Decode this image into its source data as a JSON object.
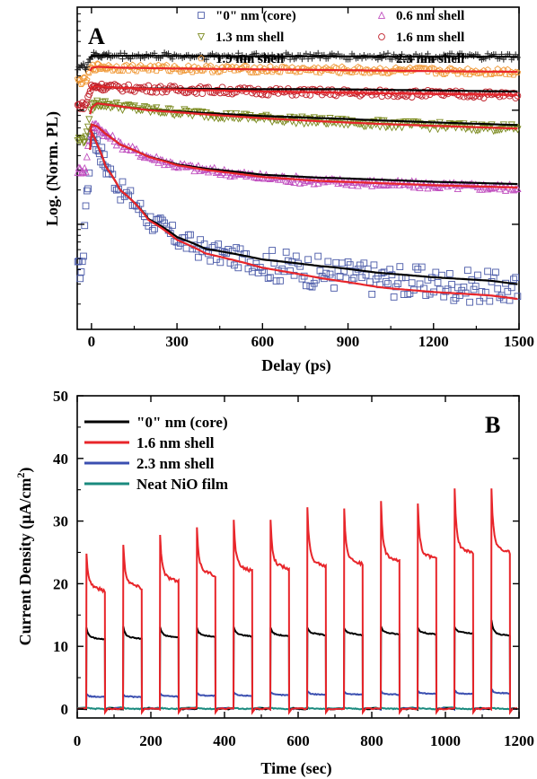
{
  "colors": {
    "core": "#4a5aa8",
    "s06": "#c04fbf",
    "s13": "#7b8a1f",
    "s16": "#c0202a",
    "s19": "#f09a3a",
    "s23": "#222222",
    "fit_black": "#000000",
    "fit_red": "#e8252a",
    "b_core": "#000000",
    "b_16": "#e8252a",
    "b_23": "#3b4fb0",
    "b_nio": "#1a8a7e"
  },
  "panel_a": {
    "letter": "A",
    "ylabel": "Log. (Norm. PL)",
    "xlabel": "Delay (ps)",
    "xticks": [
      "0",
      "300",
      "600",
      "900",
      "1200",
      "1500"
    ]
  },
  "panel_b": {
    "letter": "B",
    "ylabel_main": "Current Density (μA/cm",
    "ylabel_sup": "2",
    "ylabel_end": ")",
    "xlabel": "Time (sec)",
    "xticks": [
      "0",
      "200",
      "400",
      "600",
      "800",
      "1000",
      "1200"
    ],
    "yticks": [
      "0",
      "10",
      "20",
      "30",
      "40",
      "50"
    ]
  },
  "chart_data": [
    {
      "type": "scatter",
      "x_label": "Delay (ps)",
      "y_label": "Log. (Norm. PL)",
      "x_range": [
        -50,
        1500
      ],
      "y_scale": "log",
      "y_tick_labels_shown": false,
      "legend_location": "top-right",
      "legend": [
        {
          "label": "\"0\" nm (core)",
          "marker": "open square",
          "color": "core"
        },
        {
          "label": "0.6 nm shell",
          "marker": "open triangle up",
          "color": "s06"
        },
        {
          "label": "1.3 nm shell",
          "marker": "open triangle down",
          "color": "s13"
        },
        {
          "label": "1.6 nm shell",
          "marker": "open circle",
          "color": "s16"
        },
        {
          "label": "1.9 nm shell",
          "marker": "open pentagon",
          "color": "s19"
        },
        {
          "label": "2.3 nm shell",
          "marker": "plus",
          "color": "s23"
        }
      ],
      "series_note": "Each data series is shown with a black and a red fitted curve; values are relative log levels (1 = peak of core).",
      "series": [
        {
          "name": "\"0\" nm (core)",
          "x": [
            -30,
            -10,
            0,
            20,
            50,
            100,
            200,
            300,
            400,
            600,
            800,
            1000,
            1200,
            1400,
            1500
          ],
          "y": [
            0.04,
            0.25,
            0.65,
            0.5,
            0.32,
            0.2,
            0.11,
            0.075,
            0.058,
            0.045,
            0.038,
            0.033,
            0.03,
            0.028,
            0.026
          ]
        },
        {
          "name": "0.6 nm shell",
          "x": [
            -20,
            0,
            20,
            50,
            100,
            200,
            300,
            400,
            600,
            800,
            1000,
            1200,
            1500
          ],
          "y": [
            0.3,
            0.75,
            0.72,
            0.62,
            0.5,
            0.39,
            0.33,
            0.3,
            0.26,
            0.24,
            0.23,
            0.22,
            0.21
          ]
        },
        {
          "name": "1.3 nm shell",
          "x": [
            -20,
            0,
            20,
            100,
            200,
            400,
            600,
            800,
            1000,
            1200,
            1500
          ],
          "y": [
            0.55,
            1.05,
            1.15,
            1.08,
            1.0,
            0.92,
            0.85,
            0.8,
            0.76,
            0.73,
            0.69
          ]
        },
        {
          "name": "1.6 nm shell",
          "x": [
            -20,
            0,
            20,
            100,
            300,
            600,
            900,
            1200,
            1500
          ],
          "y": [
            1.1,
            1.6,
            1.62,
            1.57,
            1.52,
            1.46,
            1.42,
            1.39,
            1.36
          ]
        },
        {
          "name": "1.9 nm shell",
          "x": [
            -20,
            0,
            20,
            100,
            300,
            600,
            900,
            1200,
            1500
          ],
          "y": [
            1.8,
            2.35,
            2.4,
            2.36,
            2.32,
            2.28,
            2.24,
            2.2,
            2.17
          ]
        },
        {
          "name": "2.3 nm shell",
          "x": [
            -20,
            0,
            20,
            100,
            300,
            600,
            900,
            1200,
            1500
          ],
          "y": [
            2.4,
            3.0,
            3.02,
            3.0,
            2.99,
            2.97,
            2.96,
            2.95,
            2.94
          ]
        }
      ]
    },
    {
      "type": "line",
      "x_label": "Time (sec)",
      "y_label": "Current Density (μA/cm2)",
      "x_range": [
        0,
        1200
      ],
      "y_range": [
        0,
        50
      ],
      "legend_location": "top-left",
      "light_on_times": [
        25,
        125,
        225,
        325,
        425,
        525,
        625,
        725,
        825,
        925,
        1025,
        1125
      ],
      "on_duration": 50,
      "series": [
        {
          "name": "\"0\" nm (core)",
          "color": "b_core",
          "spike": [
            13.0,
            13.2,
            13.1,
            13.0,
            13.1,
            13.0,
            13.0,
            12.9,
            13.2,
            13.0,
            13.1,
            14.2
          ],
          "plateau": [
            11.5,
            11.6,
            11.8,
            11.9,
            12.0,
            12.0,
            12.2,
            12.2,
            12.3,
            12.3,
            12.4,
            12.1
          ]
        },
        {
          "name": "1.6 nm shell",
          "color": "b_16",
          "spike": [
            24.8,
            26.2,
            27.8,
            29.0,
            30.2,
            30.2,
            32.2,
            32.0,
            33.2,
            32.8,
            35.2,
            35.2
          ],
          "plateau": [
            20.0,
            20.5,
            21.5,
            22.5,
            23.2,
            23.5,
            24.0,
            24.3,
            24.7,
            25.1,
            26.0,
            26.2
          ]
        },
        {
          "name": "2.3 nm shell",
          "color": "b_23",
          "spike": [
            2.4,
            2.3,
            2.5,
            2.6,
            2.7,
            2.7,
            2.9,
            2.8,
            2.9,
            2.9,
            3.0,
            3.2
          ],
          "plateau": [
            2.0,
            2.0,
            2.1,
            2.2,
            2.2,
            2.3,
            2.4,
            2.4,
            2.4,
            2.5,
            2.5,
            2.6
          ]
        },
        {
          "name": "Neat NiO film",
          "color": "b_nio",
          "spike": [
            0.2,
            0.2,
            0.2,
            0.2,
            0.2,
            0.2,
            0.2,
            0.2,
            0.2,
            0.2,
            0.2,
            0.2
          ],
          "plateau": [
            0.1,
            0.1,
            0.1,
            0.1,
            0.1,
            0.1,
            0.1,
            0.1,
            0.1,
            0.1,
            0.1,
            0.1
          ]
        }
      ]
    }
  ]
}
